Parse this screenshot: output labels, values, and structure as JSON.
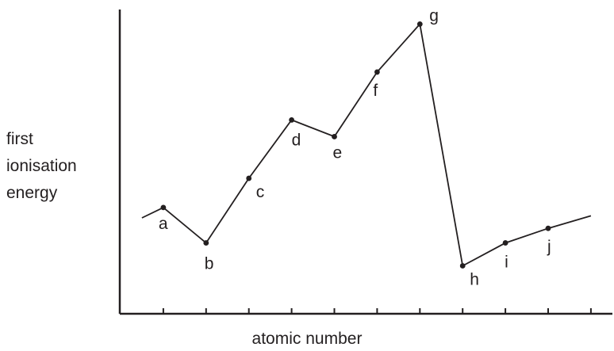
{
  "chart_data": {
    "type": "line",
    "xlabel": "atomic number",
    "ylabel_lines": [
      "first",
      "ionisation",
      "energy"
    ],
    "axis_numbers_shown": false,
    "line_color": "#231f20",
    "points": [
      {
        "label": "a",
        "x": 1,
        "y": 2.55
      },
      {
        "label": "b",
        "x": 2,
        "y": 1.7
      },
      {
        "label": "c",
        "x": 3,
        "y": 3.25
      },
      {
        "label": "d",
        "x": 4,
        "y": 4.65
      },
      {
        "label": "e",
        "x": 5,
        "y": 4.25
      },
      {
        "label": "f",
        "x": 6,
        "y": 5.8
      },
      {
        "label": "g",
        "x": 7,
        "y": 6.95
      },
      {
        "label": "h",
        "x": 8,
        "y": 1.15
      },
      {
        "label": "i",
        "x": 9,
        "y": 1.7
      },
      {
        "label": "j",
        "x": 10,
        "y": 2.05
      }
    ],
    "leading_segment": {
      "x": 0.5,
      "y": 2.3
    },
    "trailing_segment": {
      "x": 11,
      "y": 2.35
    },
    "x_tick_count": 11
  }
}
